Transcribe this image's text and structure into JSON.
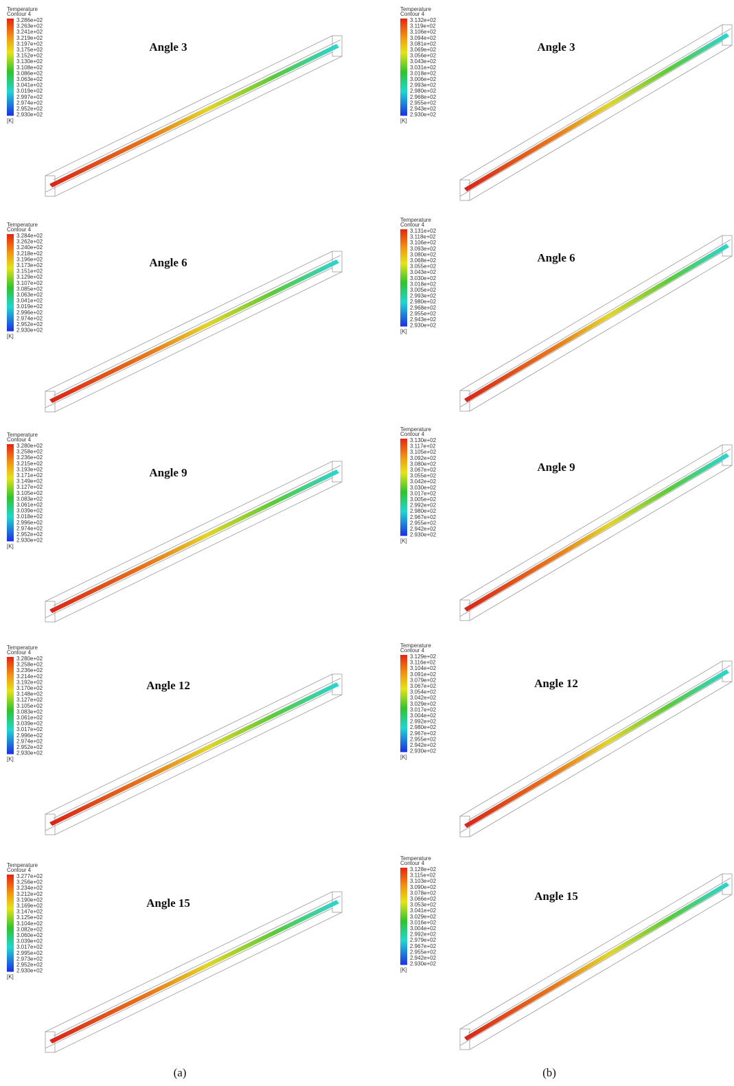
{
  "columns": [
    {
      "caption": "(a)",
      "panels": [
        {
          "angle": "Angle 3",
          "legend": {
            "title": "Temperature",
            "subtitle": "Contour 4",
            "unit": "[K]",
            "labels": [
              "3.286e+02",
              "3.263e+02",
              "3.241e+02",
              "3.219e+02",
              "3.197e+02",
              "3.175e+02",
              "3.152e+02",
              "3.130e+02",
              "3.108e+02",
              "3.086e+02",
              "3.063e+02",
              "3.041e+02",
              "3.019e+02",
              "2.997e+02",
              "2.974e+02",
              "2.952e+02",
              "2.930e+02"
            ]
          }
        },
        {
          "angle": "Angle 6",
          "legend": {
            "title": "Temperature",
            "subtitle": "Contour 4",
            "unit": "[K]",
            "labels": [
              "3.284e+02",
              "3.262e+02",
              "3.240e+02",
              "3.218e+02",
              "3.196e+02",
              "3.173e+02",
              "3.151e+02",
              "3.129e+02",
              "3.107e+02",
              "3.085e+02",
              "3.063e+02",
              "3.041e+02",
              "3.019e+02",
              "2.996e+02",
              "2.974e+02",
              "2.952e+02",
              "2.930e+02"
            ]
          }
        },
        {
          "angle": "Angle 9",
          "legend": {
            "title": "Temperature",
            "subtitle": "Contour 4",
            "unit": "[K]",
            "labels": [
              "3.280e+02",
              "3.258e+02",
              "3.236e+02",
              "3.215e+02",
              "3.193e+02",
              "3.171e+02",
              "3.149e+02",
              "3.127e+02",
              "3.105e+02",
              "3.083e+02",
              "3.061e+02",
              "3.039e+02",
              "3.018e+02",
              "2.996e+02",
              "2.974e+02",
              "2.952e+02",
              "2.930e+02"
            ]
          }
        },
        {
          "angle": "Angle 12",
          "legend": {
            "title": "Temperature",
            "subtitle": "Contour 4",
            "unit": "[K]",
            "labels": [
              "3.280e+02",
              "3.258e+02",
              "3.236e+02",
              "3.214e+02",
              "3.192e+02",
              "3.170e+02",
              "3.148e+02",
              "3.127e+02",
              "3.105e+02",
              "3.083e+02",
              "3.061e+02",
              "3.039e+02",
              "3.017e+02",
              "2.996e+02",
              "2.974e+02",
              "2.952e+02",
              "2.930e+02"
            ]
          }
        },
        {
          "angle": "Angle 15",
          "legend": {
            "title": "Temperature",
            "subtitle": "Contour 4",
            "unit": "[K]",
            "labels": [
              "3.277e+02",
              "3.256e+02",
              "3.234e+02",
              "3.212e+02",
              "3.190e+02",
              "3.169e+02",
              "3.147e+02",
              "3.125e+02",
              "3.104e+02",
              "3.082e+02",
              "3.060e+02",
              "3.039e+02",
              "3.017e+02",
              "2.995e+02",
              "2.973e+02",
              "2.952e+02",
              "2.930e+02"
            ]
          }
        }
      ]
    },
    {
      "caption": "(b)",
      "panels": [
        {
          "angle": "Angle 3",
          "legend": {
            "title": "Temperature",
            "subtitle": "Contour 4",
            "unit": "[K]",
            "labels": [
              "3.132e+02",
              "3.119e+02",
              "3.106e+02",
              "3.094e+02",
              "3.081e+02",
              "3.069e+02",
              "3.056e+02",
              "3.043e+02",
              "3.031e+02",
              "3.018e+02",
              "3.006e+02",
              "2.993e+02",
              "2.980e+02",
              "2.968e+02",
              "2.955e+02",
              "2.943e+02",
              "2.930e+02"
            ]
          }
        },
        {
          "angle": "Angle 6",
          "legend": {
            "title": "Temperature",
            "subtitle": "Contour 4",
            "unit": "[K]",
            "labels": [
              "3.131e+02",
              "3.118e+02",
              "3.106e+02",
              "3.093e+02",
              "3.080e+02",
              "3.068e+02",
              "3.055e+02",
              "3.043e+02",
              "3.030e+02",
              "3.018e+02",
              "3.005e+02",
              "2.993e+02",
              "2.980e+02",
              "2.968e+02",
              "2.955e+02",
              "2.943e+02",
              "2.930e+02"
            ]
          }
        },
        {
          "angle": "Angle 9",
          "legend": {
            "title": "Temperature",
            "subtitle": "Contour 4",
            "unit": "[K]",
            "labels": [
              "3.130e+02",
              "3.117e+02",
              "3.105e+02",
              "3.092e+02",
              "3.080e+02",
              "3.067e+02",
              "3.055e+02",
              "3.042e+02",
              "3.030e+02",
              "3.017e+02",
              "3.005e+02",
              "2.992e+02",
              "2.980e+02",
              "2.967e+02",
              "2.955e+02",
              "2.942e+02",
              "2.930e+02"
            ]
          }
        },
        {
          "angle": "Angle 12",
          "legend": {
            "title": "Temperature",
            "subtitle": "Contour 4",
            "unit": "[K]",
            "labels": [
              "3.129e+02",
              "3.116e+02",
              "3.104e+02",
              "3.091e+02",
              "3.079e+02",
              "3.067e+02",
              "3.054e+02",
              "3.042e+02",
              "3.029e+02",
              "3.017e+02",
              "3.004e+02",
              "2.992e+02",
              "2.980e+02",
              "2.967e+02",
              "2.955e+02",
              "2.942e+02",
              "2.930e+02"
            ]
          }
        },
        {
          "angle": "Angle 15",
          "legend": {
            "title": "Temperature",
            "subtitle": "Contour 4",
            "unit": "[K]",
            "labels": [
              "3.128e+02",
              "3.115e+02",
              "3.103e+02",
              "3.090e+02",
              "3.078e+02",
              "3.066e+02",
              "3.053e+02",
              "3.041e+02",
              "3.029e+02",
              "3.016e+02",
              "3.004e+02",
              "2.992e+02",
              "2.979e+02",
              "2.967e+02",
              "2.955e+02",
              "2.942e+02",
              "2.930e+02"
            ]
          }
        }
      ]
    }
  ]
}
